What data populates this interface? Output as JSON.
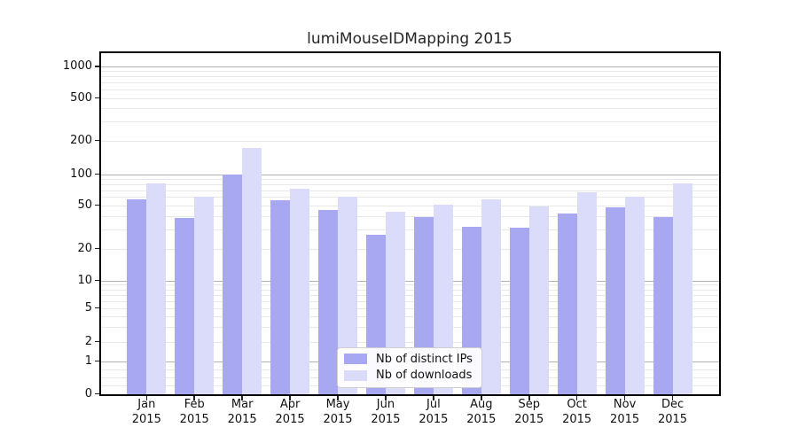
{
  "chart_data": {
    "type": "bar",
    "title": "lumiMouseIDMapping 2015",
    "x_axis": {
      "months": [
        "Jan",
        "Feb",
        "Mar",
        "Apr",
        "May",
        "Jun",
        "Jul",
        "Aug",
        "Sep",
        "Oct",
        "Nov",
        "Dec"
      ],
      "year": "2015"
    },
    "y_axis": {
      "scale": "log",
      "tick_values": [
        0,
        1,
        2,
        5,
        10,
        20,
        50,
        100,
        200,
        500,
        1000
      ],
      "tick_labels": [
        "0",
        "1",
        "2",
        "5",
        "10",
        "20",
        "50",
        "100",
        "200",
        "500",
        "1000"
      ],
      "ylim": [
        0,
        1000
      ]
    },
    "series": [
      {
        "name": "Nb of distinct IPs",
        "color": "#a8a8f2",
        "values": [
          57,
          38,
          100,
          56,
          45,
          27,
          39,
          32,
          31,
          42,
          48,
          39
        ]
      },
      {
        "name": "Nb of downloads",
        "color": "#dbdbfa",
        "values": [
          81,
          60,
          172,
          72,
          61,
          44,
          51,
          57,
          49,
          67,
          61,
          82
        ]
      }
    ],
    "legend": {
      "entries": [
        "Nb of distinct IPs",
        "Nb of downloads"
      ],
      "position": "inside-bottom-center"
    },
    "grid": {
      "major_color": "#b3b3b3",
      "minor_color": "#e8e8e8"
    }
  }
}
